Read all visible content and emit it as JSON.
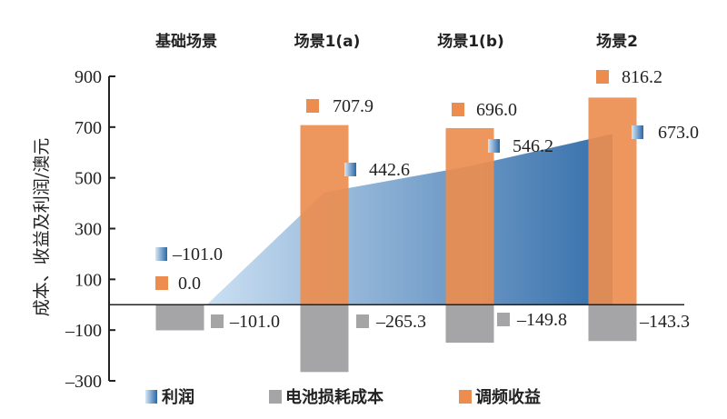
{
  "chart_data": {
    "type": "bar",
    "title": "",
    "xlabel": "",
    "ylabel": "成本、收益及利润/澳元",
    "ylim": [
      -300,
      900
    ],
    "yticks": [
      900,
      700,
      500,
      300,
      100,
      -100,
      -300
    ],
    "ytick_labels": [
      "900",
      "700",
      "500",
      "300",
      "100",
      "–100",
      "–300"
    ],
    "grid": false,
    "legend_position": "bottom",
    "categories": [
      "基础场景",
      "场景1(a)",
      "场景1(b)",
      "场景2"
    ],
    "series": [
      {
        "name": "利润",
        "kind": "area",
        "color_start": "#c8def2",
        "color_end": "#2a67a6",
        "values": [
          -101.0,
          442.6,
          546.2,
          673.0
        ],
        "data_labels": [
          "–101.0",
          "442.6",
          "546.2",
          "673.0"
        ]
      },
      {
        "name": "电池损耗成本",
        "kind": "bar",
        "color": "#a5a5a7",
        "values": [
          -101.0,
          -265.3,
          -149.8,
          -143.3
        ],
        "data_labels": [
          "–101.0",
          "–265.3",
          "–149.8",
          "–143.3"
        ]
      },
      {
        "name": "调频收益",
        "kind": "bar",
        "color": "#ec8d4f",
        "values": [
          0.0,
          707.9,
          696.0,
          816.2
        ],
        "data_labels": [
          "0.0",
          "707.9",
          "696.0",
          "816.2"
        ]
      }
    ]
  }
}
